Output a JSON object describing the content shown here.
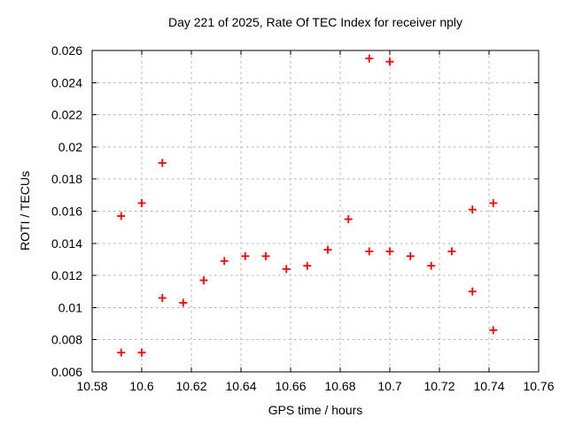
{
  "chart_data": {
    "type": "scatter",
    "title": "Day 221 of 2025, Rate Of TEC Index for receiver nply",
    "xlabel": "GPS time / hours",
    "ylabel": "ROTI / TECUs",
    "xlim": [
      10.58,
      10.76
    ],
    "ylim": [
      0.006,
      0.026
    ],
    "x_ticks": [
      10.58,
      10.6,
      10.62,
      10.64,
      10.66,
      10.68,
      10.7,
      10.72,
      10.74,
      10.76
    ],
    "x_tick_labels": [
      "10.58",
      "10.6",
      "10.62",
      "10.64",
      "10.66",
      "10.68",
      "10.7",
      "10.72",
      "10.74",
      "10.76"
    ],
    "y_ticks": [
      0.006,
      0.008,
      0.01,
      0.012,
      0.014,
      0.016,
      0.018,
      0.02,
      0.022,
      0.024,
      0.026
    ],
    "y_tick_labels": [
      "0.006",
      "0.008",
      "0.01",
      "0.012",
      "0.014",
      "0.016",
      "0.018",
      "0.02",
      "0.022",
      "0.024",
      "0.026"
    ],
    "grid": true,
    "legend": "none",
    "marker": {
      "shape": "plus",
      "color": "#ff0000",
      "size": 9
    },
    "grid_color": "#b0b0b0",
    "axis_color": "#000000",
    "points": [
      [
        10.5917,
        0.0157
      ],
      [
        10.5917,
        0.0072
      ],
      [
        10.6,
        0.0165
      ],
      [
        10.6,
        0.0072
      ],
      [
        10.6083,
        0.019
      ],
      [
        10.6083,
        0.0106
      ],
      [
        10.6167,
        0.0103
      ],
      [
        10.625,
        0.0117
      ],
      [
        10.6333,
        0.0129
      ],
      [
        10.6417,
        0.0132
      ],
      [
        10.65,
        0.0132
      ],
      [
        10.6583,
        0.0124
      ],
      [
        10.6667,
        0.0126
      ],
      [
        10.675,
        0.0136
      ],
      [
        10.6833,
        0.0155
      ],
      [
        10.6917,
        0.0255
      ],
      [
        10.6917,
        0.0135
      ],
      [
        10.7,
        0.0253
      ],
      [
        10.7,
        0.0135
      ],
      [
        10.7083,
        0.0132
      ],
      [
        10.7167,
        0.0126
      ],
      [
        10.725,
        0.0135
      ],
      [
        10.7333,
        0.0161
      ],
      [
        10.7333,
        0.011
      ],
      [
        10.7417,
        0.0165
      ],
      [
        10.7417,
        0.0086
      ]
    ]
  }
}
